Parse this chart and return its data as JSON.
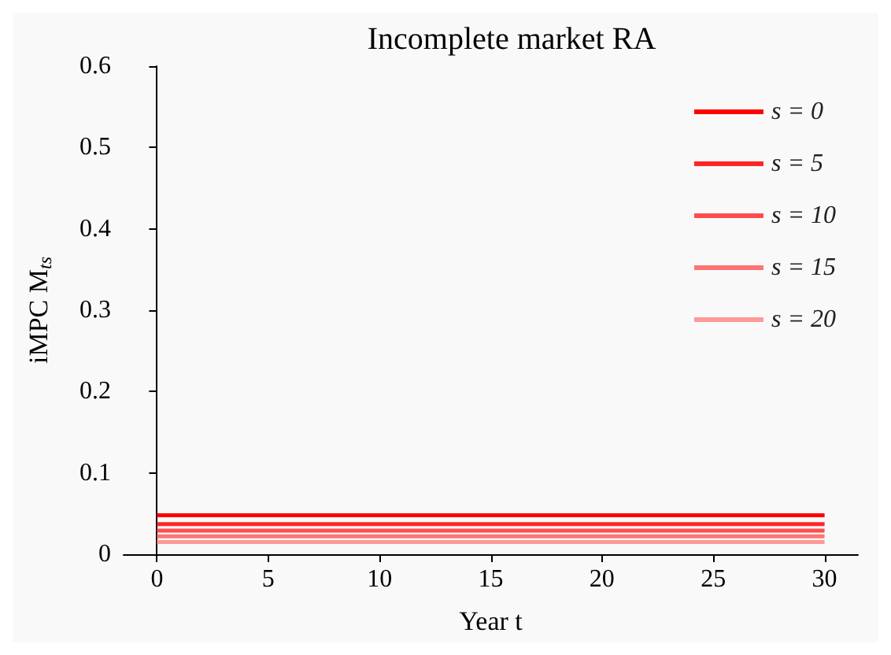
{
  "chart_data": {
    "type": "line",
    "title": "Incomplete market RA",
    "xlabel": "Year t",
    "ylabel": "iMPC M$_{ts}$",
    "x": [
      0,
      30
    ],
    "series": [
      {
        "name": "s = 0",
        "color": "#ff0000",
        "values": [
          0.048,
          0.048
        ]
      },
      {
        "name": "s = 5",
        "color": "#ff2626",
        "values": [
          0.037,
          0.037
        ]
      },
      {
        "name": "s = 10",
        "color": "#ff4d4d",
        "values": [
          0.029,
          0.029
        ]
      },
      {
        "name": "s = 15",
        "color": "#ff7373",
        "values": [
          0.022,
          0.022
        ]
      },
      {
        "name": "s = 20",
        "color": "#ff9999",
        "values": [
          0.015,
          0.015
        ]
      }
    ],
    "xlim": [
      -1.5,
      31.5
    ],
    "xticks": [
      0,
      5,
      10,
      15,
      20,
      25,
      30
    ],
    "ylim": [
      0,
      0.6
    ],
    "yticks": [
      0,
      0.1,
      0.2,
      0.3,
      0.4,
      0.5,
      0.6
    ],
    "grid": false,
    "legend": "top right",
    "marker": "none",
    "line_style": "solid"
  }
}
